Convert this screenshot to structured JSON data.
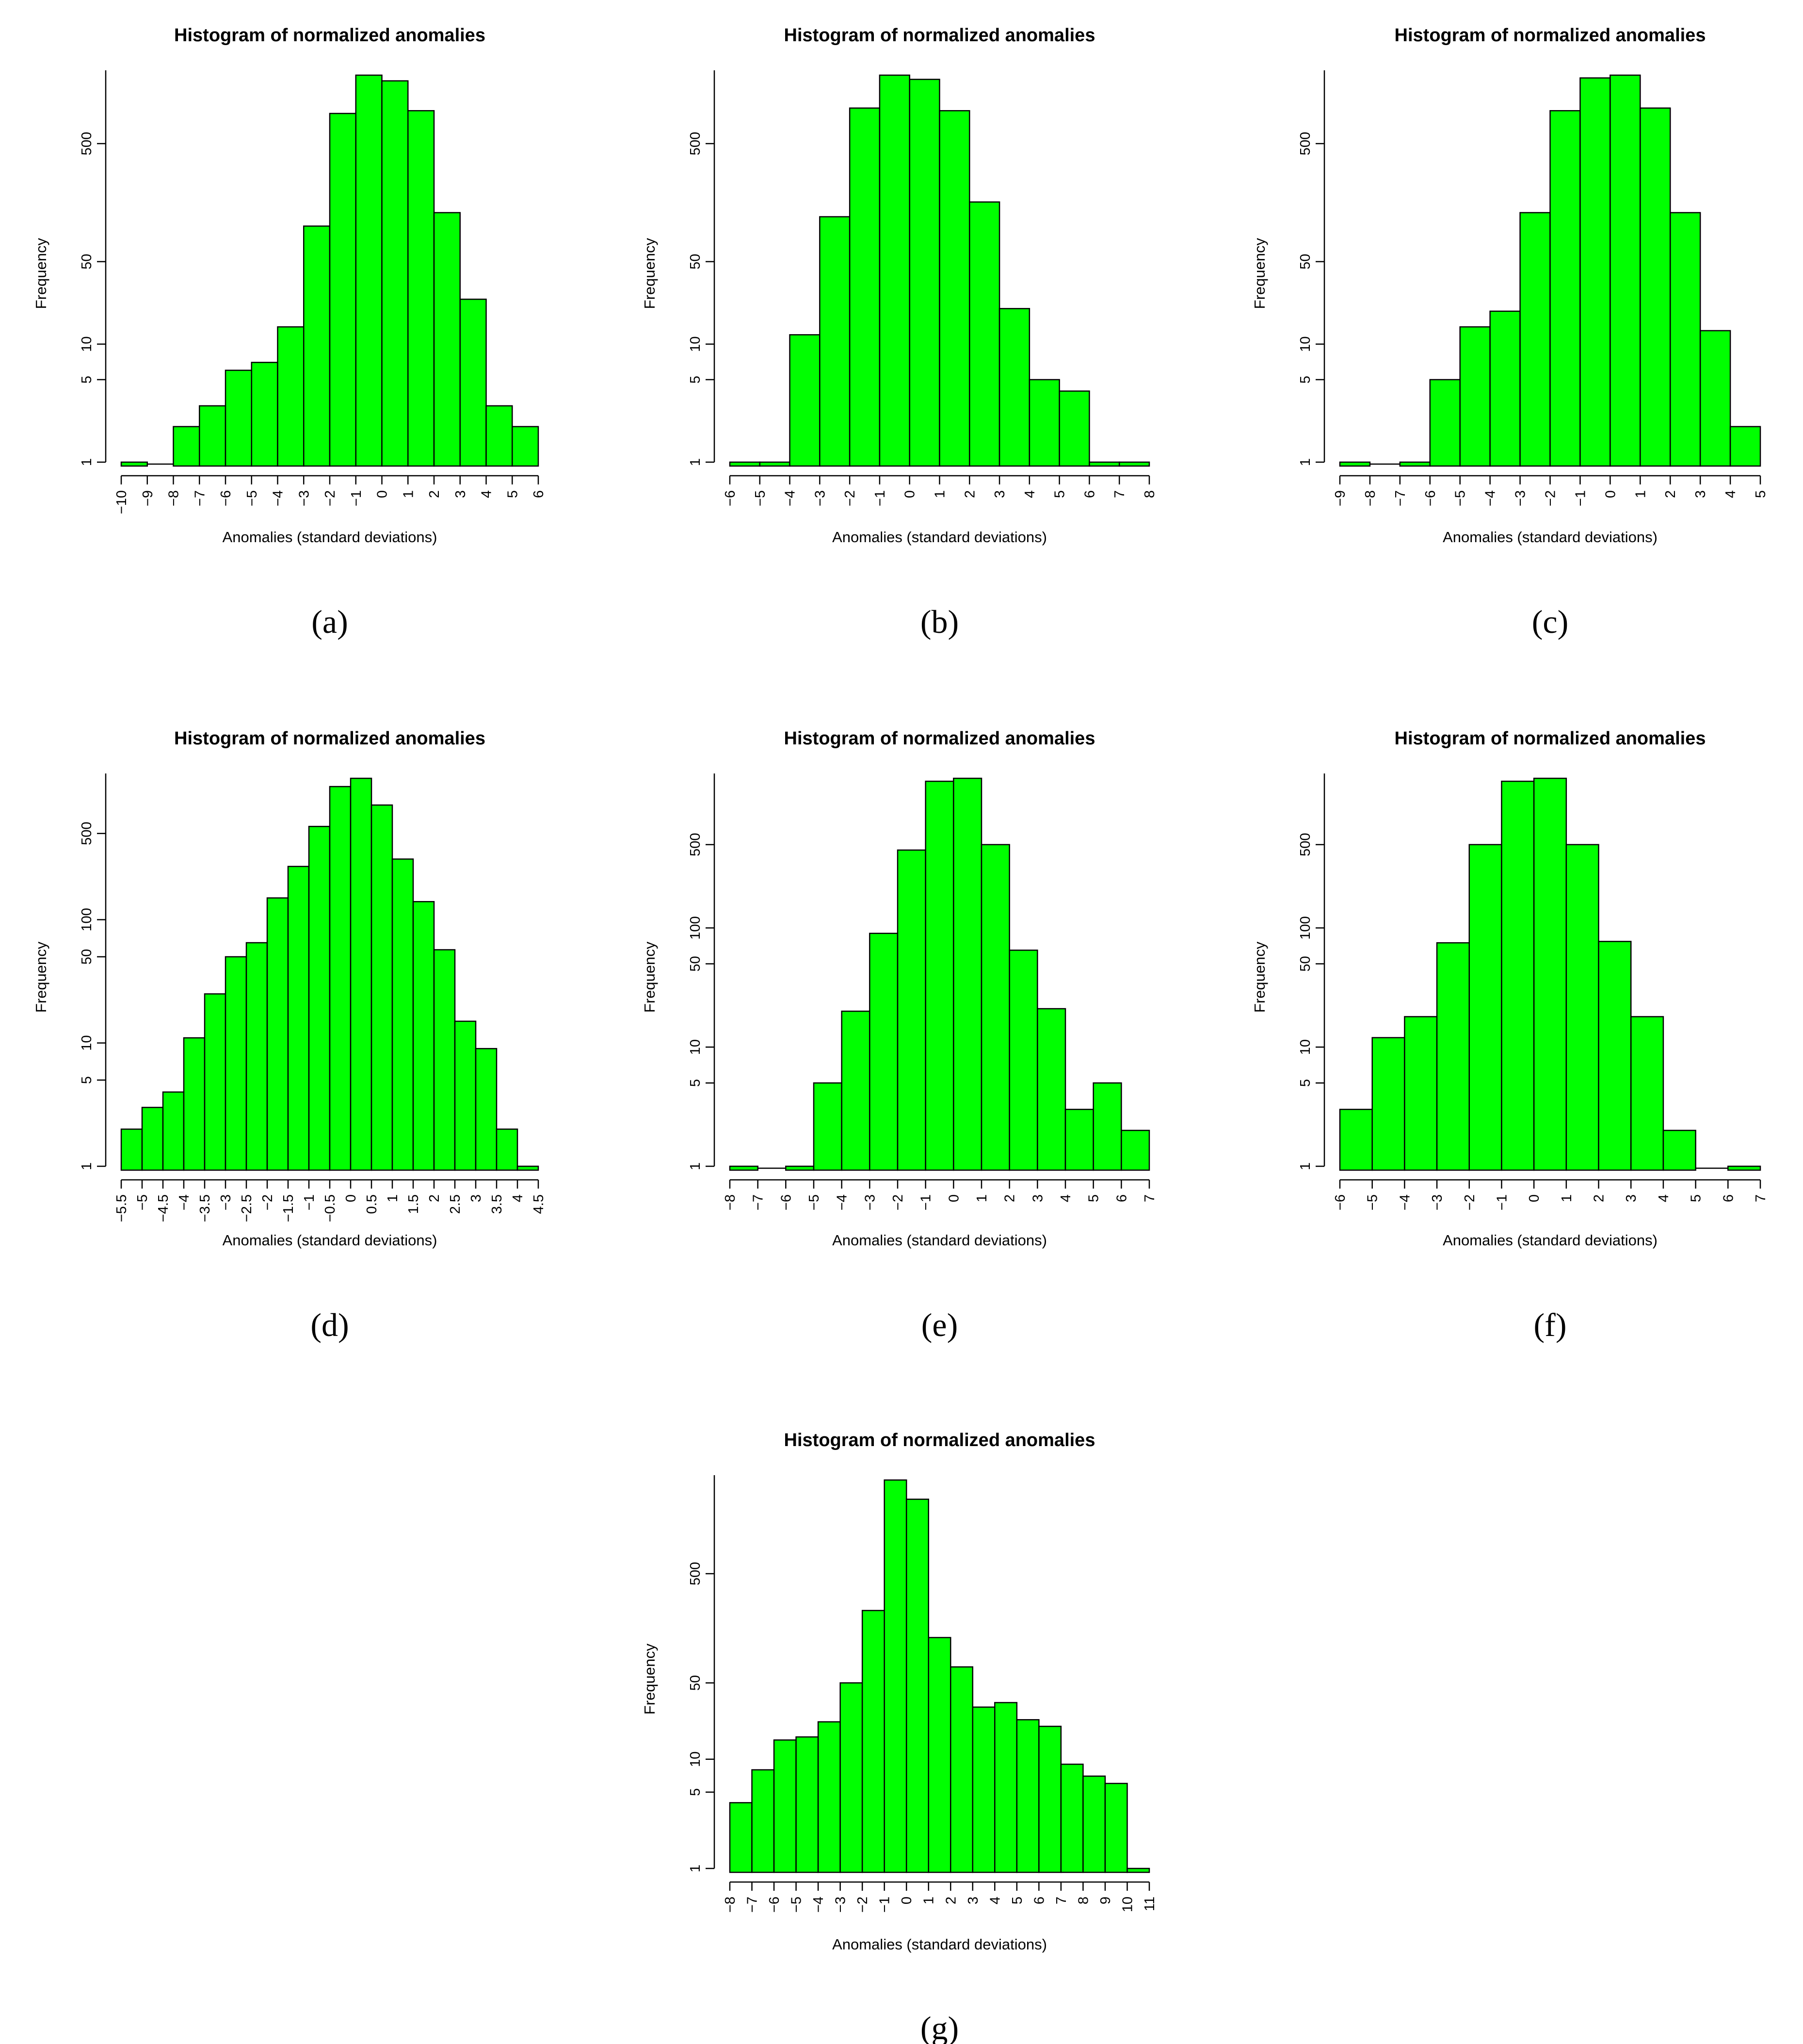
{
  "bar_color": "#00ff00",
  "bar_stroke": "#000000",
  "chart_data": [
    {
      "type": "bar",
      "panel": "a",
      "caption": "(a)",
      "title": "Histogram of normalized anomalies",
      "xlabel": "Anomalies (standard deviations)",
      "ylabel": "Frequency",
      "y_scale": "log",
      "y_ticks": [
        1,
        5,
        10,
        50,
        500
      ],
      "ylim": [
        1,
        1900
      ],
      "bin_edges": [
        -10,
        -9,
        -8,
        -7,
        -6,
        -5,
        -4,
        -3,
        -2,
        -1,
        0,
        1,
        2,
        3,
        4,
        5,
        6
      ],
      "x_tick_labels": [
        "−10",
        "−9",
        "−8",
        "−7",
        "−6",
        "−5",
        "−4",
        "−3",
        "−2",
        "−1",
        "0",
        "1",
        "2",
        "3",
        "4",
        "5",
        "6"
      ],
      "values": [
        1,
        0,
        2,
        3,
        6,
        7,
        14,
        100,
        900,
        1900,
        1700,
        950,
        130,
        24,
        3,
        2
      ]
    },
    {
      "type": "bar",
      "panel": "b",
      "caption": "(b)",
      "title": "Histogram of normalized anomalies",
      "xlabel": "Anomalies (standard deviations)",
      "ylabel": "Frequency",
      "y_scale": "log",
      "y_ticks": [
        1,
        5,
        10,
        50,
        500
      ],
      "ylim": [
        1,
        1900
      ],
      "bin_edges": [
        -6,
        -5,
        -4,
        -3,
        -2,
        -1,
        0,
        1,
        2,
        3,
        4,
        5,
        6,
        7,
        8
      ],
      "x_tick_labels": [
        "−6",
        "−5",
        "−4",
        "−3",
        "−2",
        "−1",
        "0",
        "1",
        "2",
        "3",
        "4",
        "5",
        "6",
        "7",
        "8"
      ],
      "values": [
        1,
        1,
        12,
        120,
        1000,
        1900,
        1750,
        950,
        160,
        20,
        5,
        4,
        1,
        1
      ]
    },
    {
      "type": "bar",
      "panel": "c",
      "caption": "(c)",
      "title": "Histogram of normalized anomalies",
      "xlabel": "Anomalies (standard deviations)",
      "ylabel": "Frequency",
      "y_scale": "log",
      "y_ticks": [
        1,
        5,
        10,
        50,
        500
      ],
      "ylim": [
        1,
        1900
      ],
      "bin_edges": [
        -9,
        -8,
        -7,
        -6,
        -5,
        -4,
        -3,
        -2,
        -1,
        0,
        1,
        2,
        3,
        4,
        5
      ],
      "x_tick_labels": [
        "−9",
        "−8",
        "−7",
        "−6",
        "−5",
        "−4",
        "−3",
        "−2",
        "−1",
        "0",
        "1",
        "2",
        "3",
        "4",
        "5"
      ],
      "values": [
        1,
        0,
        1,
        5,
        14,
        19,
        130,
        950,
        1800,
        1900,
        1000,
        130,
        13,
        2
      ]
    },
    {
      "type": "bar",
      "panel": "d",
      "caption": "(d)",
      "title": "Histogram of normalized anomalies",
      "xlabel": "Anomalies (standard deviations)",
      "ylabel": "Frequency",
      "y_scale": "log",
      "y_ticks": [
        1,
        5,
        10,
        50,
        100,
        500
      ],
      "ylim": [
        1,
        1400
      ],
      "bin_edges": [
        -5.5,
        -5,
        -4.5,
        -4,
        -3.5,
        -3,
        -2.5,
        -2,
        -1.5,
        -1,
        -0.5,
        0,
        0.5,
        1,
        1.5,
        2,
        2.5,
        3,
        3.5,
        4,
        4.5
      ],
      "x_tick_labels": [
        "−5.5",
        "−5",
        "−4.5",
        "−4",
        "−3.5",
        "−3",
        "−2.5",
        "−2",
        "−1.5",
        "−1",
        "−0.5",
        "0",
        "0.5",
        "1",
        "1.5",
        "2",
        "2.5",
        "3",
        "3.5",
        "4",
        "4.5"
      ],
      "values": [
        2,
        3,
        4,
        11,
        25,
        50,
        65,
        150,
        270,
        570,
        1200,
        1400,
        850,
        310,
        140,
        57,
        15,
        9,
        2,
        1
      ]
    },
    {
      "type": "bar",
      "panel": "e",
      "caption": "(e)",
      "title": "Histogram of normalized anomalies",
      "xlabel": "Anomalies (standard deviations)",
      "ylabel": "Frequency",
      "y_scale": "log",
      "y_ticks": [
        1,
        5,
        10,
        50,
        100,
        500
      ],
      "ylim": [
        1,
        1800
      ],
      "bin_edges": [
        -8,
        -7,
        -6,
        -5,
        -4,
        -3,
        -2,
        -1,
        0,
        1,
        2,
        3,
        4,
        5,
        6,
        7
      ],
      "x_tick_labels": [
        "−8",
        "−7",
        "−6",
        "−5",
        "−4",
        "−3",
        "−2",
        "−1",
        "0",
        "1",
        "2",
        "3",
        "4",
        "5",
        "6",
        "7"
      ],
      "values": [
        1,
        0,
        1,
        5,
        20,
        90,
        450,
        1700,
        1800,
        500,
        65,
        21,
        3,
        5,
        2
      ]
    },
    {
      "type": "bar",
      "panel": "f",
      "caption": "(f)",
      "title": "Histogram of normalized anomalies",
      "xlabel": "Anomalies (standard deviations)",
      "ylabel": "Frequency",
      "y_scale": "log",
      "y_ticks": [
        1,
        5,
        10,
        50,
        100,
        500
      ],
      "ylim": [
        1,
        1800
      ],
      "bin_edges": [
        -6,
        -5,
        -4,
        -3,
        -2,
        -1,
        0,
        1,
        2,
        3,
        4,
        5,
        6,
        7
      ],
      "x_tick_labels": [
        "−6",
        "−5",
        "−4",
        "−3",
        "−2",
        "−1",
        "0",
        "1",
        "2",
        "3",
        "4",
        "5",
        "6",
        "7"
      ],
      "values": [
        3,
        12,
        18,
        75,
        500,
        1700,
        1800,
        500,
        77,
        18,
        2,
        0,
        1
      ]
    },
    {
      "type": "bar",
      "panel": "g",
      "caption": "(g)",
      "title": "Histogram of normalized anomalies",
      "xlabel": "Anomalies (standard deviations)",
      "ylabel": "Frequency",
      "y_scale": "log",
      "y_ticks": [
        1,
        5,
        10,
        50,
        500
      ],
      "ylim": [
        1,
        3600
      ],
      "bin_edges": [
        -8,
        -7,
        -6,
        -5,
        -4,
        -3,
        -2,
        -1,
        0,
        1,
        2,
        3,
        4,
        5,
        6,
        7,
        8,
        9,
        10,
        11
      ],
      "x_tick_labels": [
        "−8",
        "−7",
        "−6",
        "−5",
        "−4",
        "−3",
        "−2",
        "−1",
        "0",
        "1",
        "2",
        "3",
        "4",
        "5",
        "6",
        "7",
        "8",
        "9",
        "10",
        "11"
      ],
      "values": [
        4,
        8,
        15,
        16,
        22,
        50,
        230,
        3600,
        2400,
        130,
        70,
        30,
        33,
        23,
        20,
        9,
        7,
        6,
        1
      ]
    }
  ]
}
